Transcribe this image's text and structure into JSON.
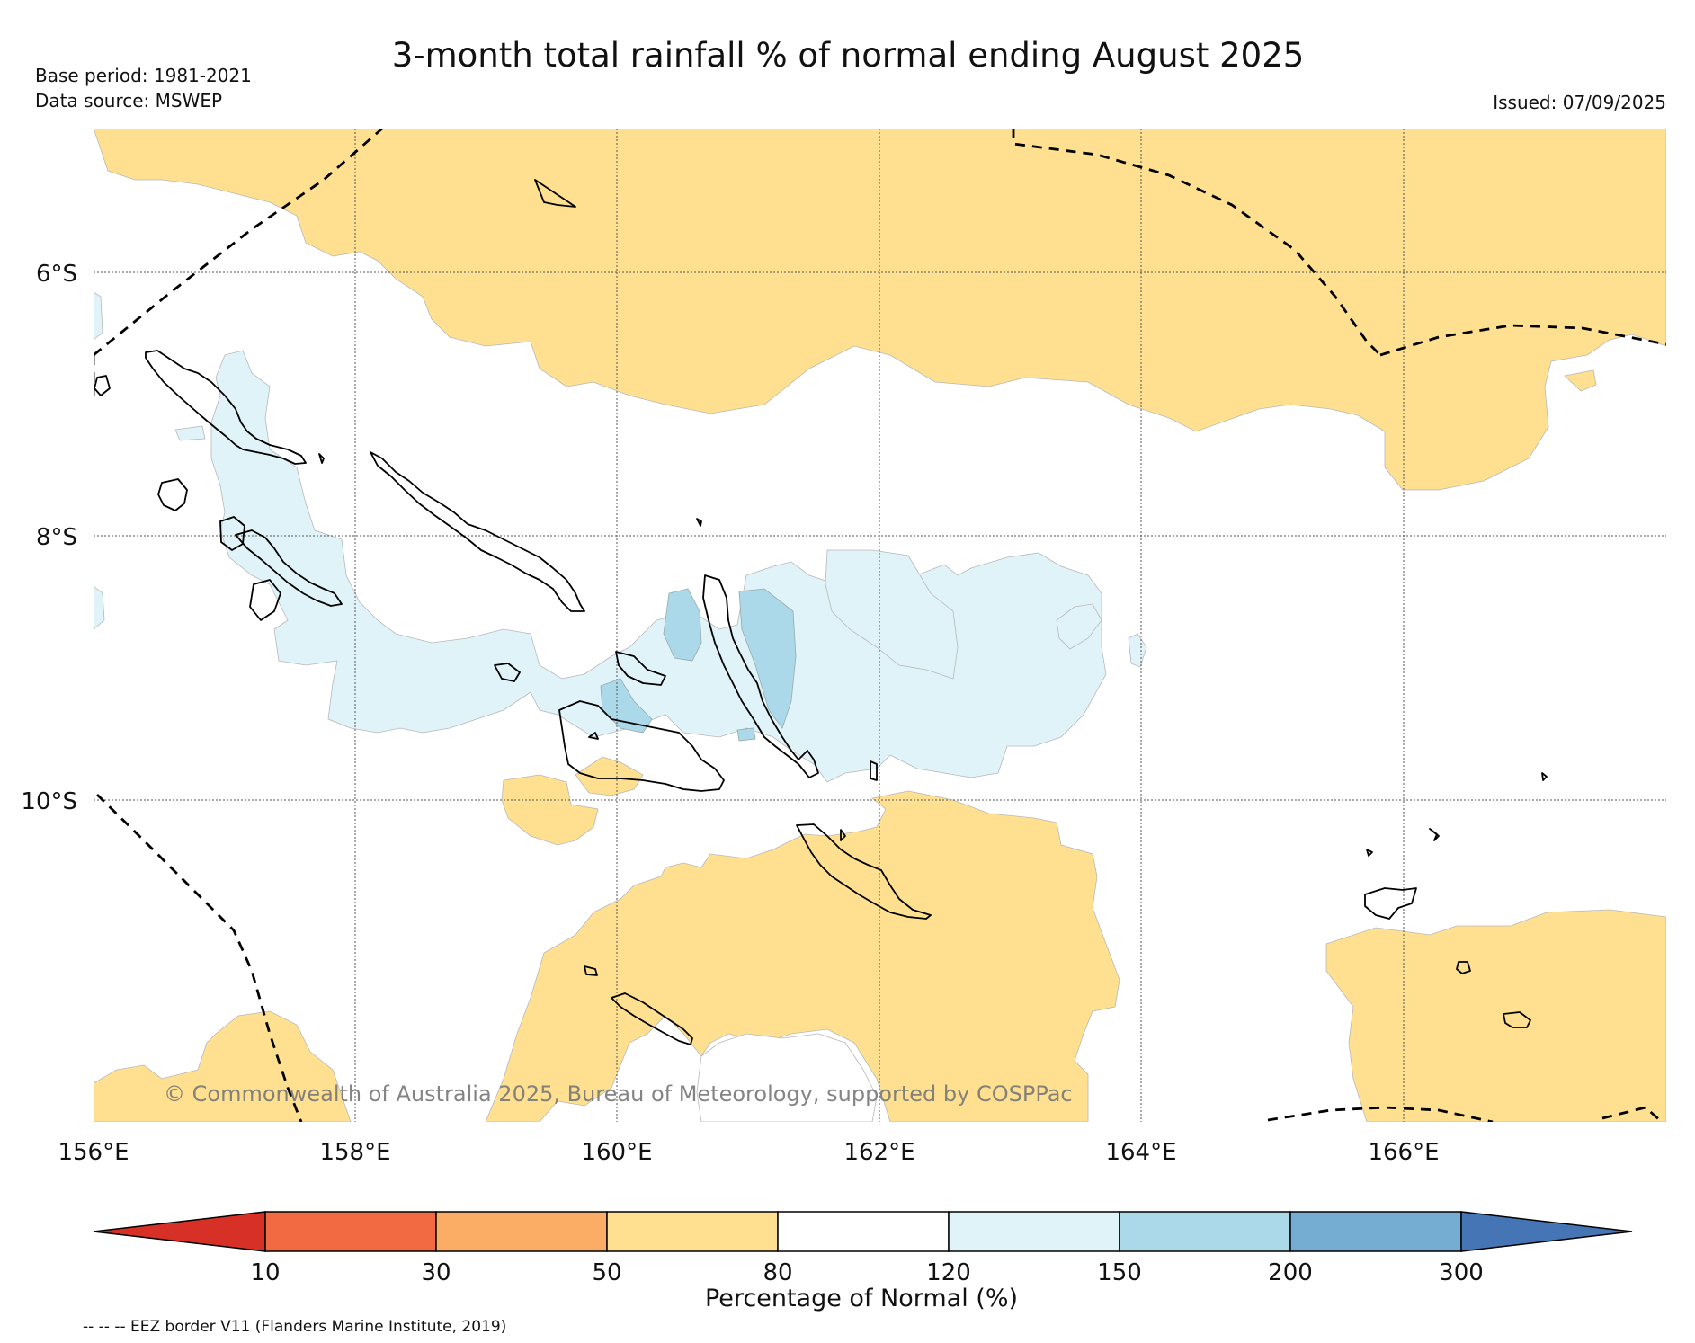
{
  "figure": {
    "title": "3-month total rainfall % of normal ending August 2025",
    "base_period": "Base period: 1981-2021",
    "data_source": "Data source: MSWEP",
    "issued": "Issued: 07/09/2025",
    "copyright": "© Commonwealth of Australia 2025, Bureau of Meteorology, supported by COSPPac",
    "eez_note": "-- -- -- EEZ border V11 (Flanders Marine Institute, 2019)"
  },
  "map": {
    "lat_labels": [
      "6°S",
      "8°S",
      "10°S"
    ],
    "lon_labels": [
      "156°E",
      "158°E",
      "160°E",
      "162°E",
      "164°E",
      "166°E"
    ]
  },
  "colorbar": {
    "title": "Percentage of Normal (%)",
    "tick_labels": [
      "10",
      "30",
      "50",
      "80",
      "120",
      "150",
      "200",
      "300"
    ],
    "bin_colors": [
      "#f16a42",
      "#fbad66",
      "#fee090",
      "#ffffff",
      "#e0f3f8",
      "#abd9e9",
      "#74add1"
    ],
    "under_color": "#d73027",
    "over_color": "#4575b4"
  },
  "legend_colors": {
    "below": "#fee090",
    "normal": "#ffffff",
    "above_120": "#e0f3f8",
    "above_150": "#abd9e9",
    "above_200": "#74add1"
  }
}
